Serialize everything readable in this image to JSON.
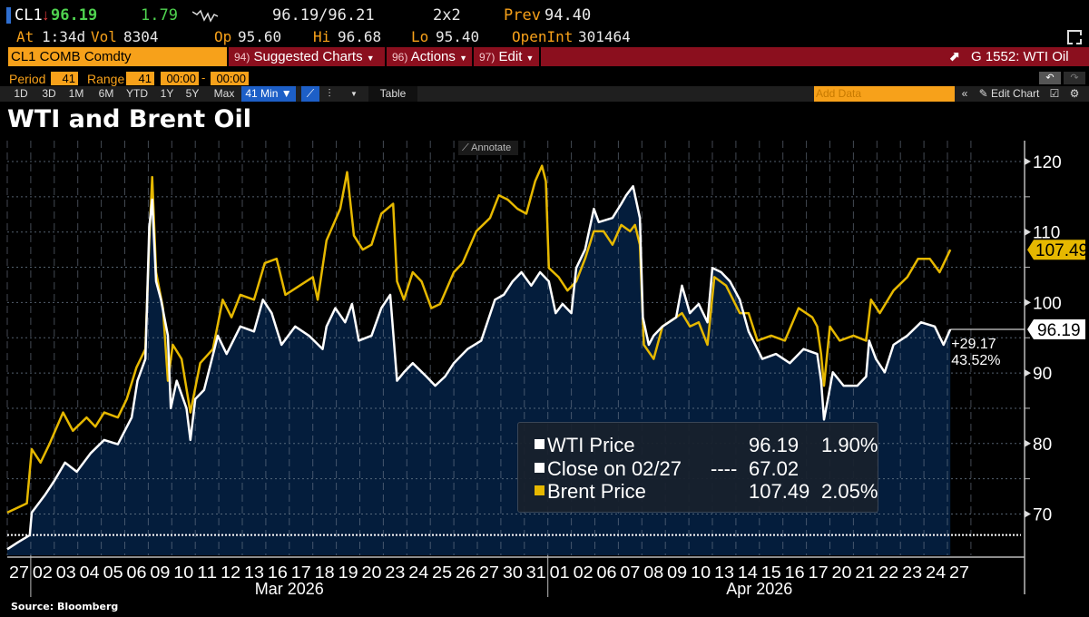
{
  "header": {
    "ticker": "CL1",
    "direction_icon": "down-arrow",
    "last": "96.19",
    "change": "1.79",
    "sparkline_icon": "sparkline-icon",
    "bid_ask": "96.19/96.21",
    "size": "2x2",
    "prev_label": "Prev",
    "prev": "94.40",
    "at_label": "At",
    "at": "1:34d",
    "vol_label": "Vol",
    "vol": "8304",
    "op_label": "Op",
    "op": "95.60",
    "hi_label": "Hi",
    "hi": "96.68",
    "lo_label": "Lo",
    "lo": "95.40",
    "oi_label": "OpenInt",
    "oi": "301464"
  },
  "command_bar": {
    "security": "CL1 COMB Comdty",
    "menus": [
      {
        "num": "94)",
        "label": "Suggested Charts"
      },
      {
        "num": "96)",
        "label": "Actions"
      },
      {
        "num": "97)",
        "label": "Edit"
      }
    ],
    "chart_id": "G 1552: WTI Oil"
  },
  "settings": {
    "period_label": "Period",
    "period": "41",
    "range_label": "Range",
    "range": "41",
    "from": "00:00",
    "sep": "-",
    "to": "00:00"
  },
  "toolbar": {
    "ranges": [
      "1D",
      "3D",
      "1M",
      "6M",
      "YTD",
      "1Y",
      "5Y",
      "Max"
    ],
    "interval": "41 Min ▼",
    "table": "Table",
    "add_data_placeholder": "Add Data",
    "edit_chart": "Edit Chart"
  },
  "colors": {
    "wti": "#ffffff",
    "brent": "#e6b800",
    "fill": "#041d3c",
    "menu_bar": "#8b0f1e",
    "accent": "#f7a11a"
  },
  "title": "WTI and Brent Oil",
  "annotate": "Annotate",
  "source": "Source: Bloomberg",
  "chart_data": {
    "type": "line",
    "title": "WTI and Brent Oil",
    "ylim": [
      64,
      122
    ],
    "yticks": [
      "70",
      "80",
      "90",
      "100",
      "110",
      "120"
    ],
    "categories": [
      "02/27",
      "03/02",
      "03/03",
      "03/04",
      "03/05",
      "03/06",
      "03/09",
      "03/10",
      "03/11",
      "03/12",
      "03/13",
      "03/16",
      "03/17",
      "03/18",
      "03/19",
      "03/20",
      "03/23",
      "03/24",
      "03/25",
      "03/26",
      "03/27",
      "03/30",
      "03/31",
      "04/01",
      "04/02",
      "04/06",
      "04/07",
      "04/08",
      "04/09",
      "04/10",
      "04/13",
      "04/14",
      "04/15",
      "04/16",
      "04/17",
      "04/20",
      "04/21",
      "04/22",
      "04/23",
      "04/24",
      "04/27"
    ],
    "tick_labels": [
      "27",
      "02",
      "03",
      "04",
      "05",
      "06",
      "09",
      "10",
      "11",
      "12",
      "13",
      "16",
      "17",
      "18",
      "19",
      "20",
      "23",
      "24",
      "25",
      "26",
      "27",
      "30",
      "31",
      "01",
      "02",
      "06",
      "07",
      "08",
      "09",
      "10",
      "13",
      "14",
      "15",
      "16",
      "17",
      "20",
      "21",
      "22",
      "23",
      "24",
      "27"
    ],
    "months": [
      "Mar 2026",
      "Apr 2026"
    ],
    "grid": true,
    "legend_placement": "bottom-center",
    "legend": [
      {
        "name": "WTI Price",
        "value": "96.19",
        "pct": "1.90%"
      },
      {
        "name": "Close on 02/27",
        "dashes": "----",
        "value": "67.02"
      },
      {
        "name": "Brent Price",
        "value": "107.49",
        "pct": "2.05%"
      }
    ],
    "reference_line": 67.02,
    "last_tags": {
      "brent": "107.49",
      "wti": "96.19"
    },
    "wti_change": {
      "abs": "+29.17",
      "pct": "43.52%"
    },
    "series": [
      {
        "name": "WTI Price",
        "points": [
          [
            "02/27 00",
            65.0
          ],
          [
            "02/27 11",
            66
          ],
          [
            "02/27 23",
            67
          ],
          [
            "03/02 01",
            70.2
          ],
          [
            "03/02 15",
            72.8
          ],
          [
            "03/03 00",
            74.7
          ],
          [
            "03/03 11",
            77.3
          ],
          [
            "03/03 23",
            76
          ],
          [
            "03/04 13",
            78.6
          ],
          [
            "03/05 03",
            80.5
          ],
          [
            "03/05 17",
            79.9
          ],
          [
            "03/06 07",
            83.7
          ],
          [
            "03/06 13",
            88.9
          ],
          [
            "03/06 21",
            92
          ],
          [
            "03/09 01",
            110.7
          ],
          [
            "03/09 04",
            114.6
          ],
          [
            "03/09 08",
            103
          ],
          [
            "03/09 13",
            100.4
          ],
          [
            "03/09 20",
            95.3
          ],
          [
            "03/09 23",
            85
          ],
          [
            "03/10 05",
            88.9
          ],
          [
            "03/10 15",
            85
          ],
          [
            "03/10 19",
            80.5
          ],
          [
            "03/11 00",
            86.3
          ],
          [
            "03/11 09",
            87.6
          ],
          [
            "03/11 23",
            95.3
          ],
          [
            "03/12 08",
            92.7
          ],
          [
            "03/12 22",
            96.6
          ],
          [
            "03/13 12",
            95.9
          ],
          [
            "03/13 21",
            100.4
          ],
          [
            "03/16 06",
            98.5
          ],
          [
            "03/16 16",
            94
          ],
          [
            "03/17 06",
            96.6
          ],
          [
            "03/17 20",
            95.3
          ],
          [
            "03/18 10",
            93.4
          ],
          [
            "03/18 14",
            96.6
          ],
          [
            "03/18 23",
            99.2
          ],
          [
            "03/19 09",
            97.2
          ],
          [
            "03/19 16",
            99.8
          ],
          [
            "03/19 23",
            94.6
          ],
          [
            "03/20 12",
            95.3
          ],
          [
            "03/20 22",
            99.2
          ],
          [
            "03/23 07",
            101.1
          ],
          [
            "03/23 14",
            88.9
          ],
          [
            "03/23 21",
            90.1
          ],
          [
            "03/24 06",
            91.4
          ],
          [
            "03/24 20",
            89.5
          ],
          [
            "03/25 05",
            88.2
          ],
          [
            "03/25 15",
            89.5
          ],
          [
            "03/26 00",
            91.4
          ],
          [
            "03/26 14",
            93.4
          ],
          [
            "03/27 04",
            94.6
          ],
          [
            "03/27 18",
            100.4
          ],
          [
            "03/30 03",
            101.1
          ],
          [
            "03/30 12",
            103
          ],
          [
            "03/30 21",
            104.3
          ],
          [
            "03/31 07",
            102.4
          ],
          [
            "03/31 16",
            104.3
          ],
          [
            "04/01 01",
            103
          ],
          [
            "04/01 08",
            98.5
          ],
          [
            "04/01 15",
            99.8
          ],
          [
            "04/02 00",
            98.5
          ],
          [
            "04/02 05",
            104.9
          ],
          [
            "04/02 14",
            107.5
          ],
          [
            "04/02 23",
            113.3
          ],
          [
            "04/06 04",
            111.4
          ],
          [
            "04/06 18",
            112
          ],
          [
            "04/07 03",
            114
          ],
          [
            "04/07 08",
            115.2
          ],
          [
            "04/07 15",
            116.5
          ],
          [
            "04/07 22",
            112
          ],
          [
            "04/08 01",
            97.9
          ],
          [
            "04/08 07",
            94
          ],
          [
            "04/08 12",
            95.3
          ],
          [
            "04/08 21",
            96.6
          ],
          [
            "04/09 11",
            97.9
          ],
          [
            "04/09 17",
            102.4
          ],
          [
            "04/10 01",
            98.5
          ],
          [
            "04/10 10",
            99.8
          ],
          [
            "04/10 19",
            97.2
          ],
          [
            "04/13 00",
            104.9
          ],
          [
            "04/13 09",
            104.3
          ],
          [
            "04/13 18",
            103
          ],
          [
            "04/14 04",
            100.4
          ],
          [
            "04/14 13",
            95.9
          ],
          [
            "04/15 03",
            92
          ],
          [
            "04/15 17",
            92.7
          ],
          [
            "04/16 07",
            91.4
          ],
          [
            "04/16 21",
            93.4
          ],
          [
            "04/17 11",
            92.7
          ],
          [
            "04/17 15",
            88.9
          ],
          [
            "04/17 18",
            83.4
          ],
          [
            "04/17 22",
            86.3
          ],
          [
            "04/20 03",
            90.1
          ],
          [
            "04/20 14",
            88.2
          ],
          [
            "04/21 04",
            88.2
          ],
          [
            "04/21 13",
            89.5
          ],
          [
            "04/21 16",
            94.6
          ],
          [
            "04/21 23",
            92
          ],
          [
            "04/22 08",
            90.1
          ],
          [
            "04/22 17",
            94
          ],
          [
            "04/23 07",
            95.3
          ],
          [
            "04/23 21",
            97.2
          ],
          [
            "04/24 11",
            96.6
          ],
          [
            "04/24 20",
            94
          ],
          [
            "04/27 03",
            96.19
          ]
        ]
      },
      {
        "name": "Brent Price",
        "points": [
          [
            "02/27 00",
            70.2
          ],
          [
            "02/27 20",
            71.5
          ],
          [
            "03/02 01",
            79.2
          ],
          [
            "03/02 10",
            77.3
          ],
          [
            "03/02 19",
            79.9
          ],
          [
            "03/03 09",
            84.4
          ],
          [
            "03/03 19",
            81.8
          ],
          [
            "03/04 09",
            83.7
          ],
          [
            "03/04 18",
            82.4
          ],
          [
            "03/05 03",
            84.4
          ],
          [
            "03/05 17",
            83.7
          ],
          [
            "03/06 02",
            86.3
          ],
          [
            "03/06 12",
            90.8
          ],
          [
            "03/06 21",
            93.4
          ],
          [
            "03/09 01",
            108.8
          ],
          [
            "03/09 04",
            117.8
          ],
          [
            "03/09 08",
            104.3
          ],
          [
            "03/09 15",
            99.2
          ],
          [
            "03/09 20",
            88.9
          ],
          [
            "03/10 01",
            94
          ],
          [
            "03/10 10",
            92
          ],
          [
            "03/10 19",
            84.4
          ],
          [
            "03/11 05",
            91.4
          ],
          [
            "03/11 18",
            93.4
          ],
          [
            "03/12 04",
            100.4
          ],
          [
            "03/12 13",
            97.9
          ],
          [
            "03/12 22",
            101.1
          ],
          [
            "03/13 12",
            100.4
          ],
          [
            "03/13 23",
            105.6
          ],
          [
            "03/16 11",
            106.2
          ],
          [
            "03/16 20",
            101.1
          ],
          [
            "03/18 00",
            103.6
          ],
          [
            "03/18 05",
            100.4
          ],
          [
            "03/18 14",
            108.8
          ],
          [
            "03/19 04",
            113.3
          ],
          [
            "03/19 11",
            118.5
          ],
          [
            "03/19 18",
            109.5
          ],
          [
            "03/20 03",
            107.5
          ],
          [
            "03/20 12",
            108.2
          ],
          [
            "03/20 22",
            112.6
          ],
          [
            "03/23 10",
            114
          ],
          [
            "03/23 14",
            103
          ],
          [
            "03/23 21",
            100.4
          ],
          [
            "03/24 06",
            104.3
          ],
          [
            "03/24 15",
            103
          ],
          [
            "03/25 01",
            99.2
          ],
          [
            "03/25 10",
            99.8
          ],
          [
            "03/26 00",
            104.3
          ],
          [
            "03/26 09",
            105.6
          ],
          [
            "03/26 23",
            110.1
          ],
          [
            "03/27 13",
            112
          ],
          [
            "03/27 22",
            115.2
          ],
          [
            "03/30 07",
            114.6
          ],
          [
            "03/30 17",
            113.3
          ],
          [
            "03/31 02",
            112.6
          ],
          [
            "03/31 11",
            117.2
          ],
          [
            "03/31 18",
            119.4
          ],
          [
            "03/31 22",
            117.2
          ],
          [
            "04/01 01",
            104.9
          ],
          [
            "04/01 11",
            103.6
          ],
          [
            "04/01 20",
            101.7
          ],
          [
            "04/02 05",
            103
          ],
          [
            "04/02 14",
            106.2
          ],
          [
            "04/02 23",
            110.1
          ],
          [
            "04/06 09",
            110.1
          ],
          [
            "04/06 18",
            108.2
          ],
          [
            "04/07 03",
            111
          ],
          [
            "04/07 12",
            110.1
          ],
          [
            "04/07 17",
            111
          ],
          [
            "04/07 22",
            108.2
          ],
          [
            "04/08 02",
            94
          ],
          [
            "04/08 12",
            92
          ],
          [
            "04/08 21",
            96.6
          ],
          [
            "04/09 11",
            97.9
          ],
          [
            "04/09 17",
            98.5
          ],
          [
            "04/10 01",
            96.6
          ],
          [
            "04/10 10",
            97.2
          ],
          [
            "04/10 19",
            94
          ],
          [
            "04/13 02",
            103.6
          ],
          [
            "04/13 14",
            102.4
          ],
          [
            "04/14 04",
            98.5
          ],
          [
            "04/14 13",
            98.5
          ],
          [
            "04/14 22",
            94.6
          ],
          [
            "04/15 12",
            95.3
          ],
          [
            "04/16 02",
            94.6
          ],
          [
            "04/16 16",
            99.2
          ],
          [
            "04/17 06",
            97.9
          ],
          [
            "04/17 11",
            96.6
          ],
          [
            "04/17 15",
            92.7
          ],
          [
            "04/17 18",
            88.2
          ],
          [
            "04/20 00",
            96.6
          ],
          [
            "04/20 10",
            94.6
          ],
          [
            "04/21 00",
            95.3
          ],
          [
            "04/21 13",
            94.6
          ],
          [
            "04/21 18",
            100.4
          ],
          [
            "04/22 03",
            98.5
          ],
          [
            "04/22 17",
            101.7
          ],
          [
            "04/23 07",
            103.6
          ],
          [
            "04/23 18",
            106.2
          ],
          [
            "04/24 06",
            106.2
          ],
          [
            "04/24 16",
            104.3
          ],
          [
            "04/27 03",
            107.49
          ]
        ]
      }
    ]
  }
}
